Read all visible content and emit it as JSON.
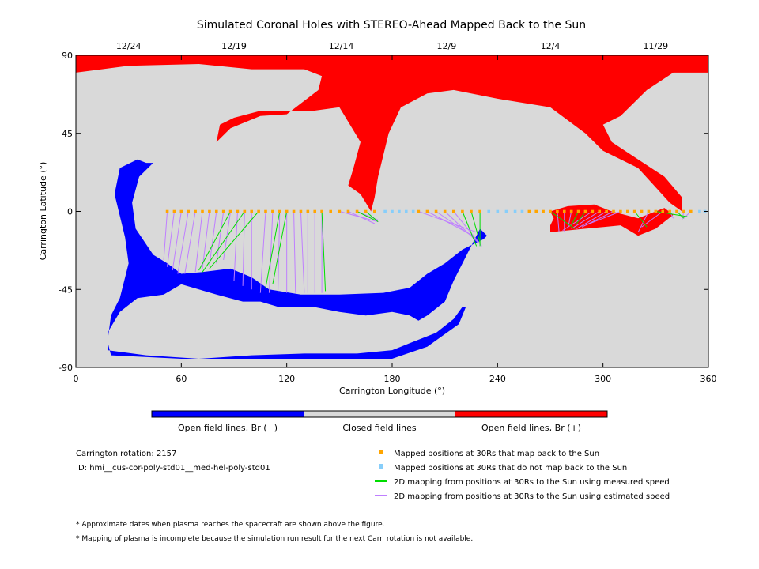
{
  "chart_data": {
    "type": "heatmap",
    "title": "Simulated Coronal Holes with STEREO-Ahead Mapped Back to the Sun",
    "xlabel": "Carrington Longitude (°)",
    "ylabel": "Carrington Latitude (°)",
    "xlim": [
      0,
      360
    ],
    "ylim": [
      -90,
      90
    ],
    "x_ticks": [
      0,
      60,
      120,
      180,
      240,
      300,
      360
    ],
    "y_ticks": [
      -90,
      -45,
      0,
      45,
      90
    ],
    "top_axis": {
      "labels": [
        "12/24",
        "12/19",
        "12/14",
        "12/9",
        "12/4",
        "11/29"
      ],
      "longitudes": [
        30,
        90,
        151,
        211,
        270,
        330
      ]
    },
    "colors": {
      "closed": "#d9d9d9",
      "open_negative": "#0000ff",
      "open_positive": "#ff0000",
      "mapped": "#ffa500",
      "not_mapped": "#87cefa",
      "measured": "#00dd00",
      "estimated": "#bf7fff"
    },
    "colorbar": [
      {
        "label": "Open field lines, Br (−)",
        "color": "#0000ff"
      },
      {
        "label": "Closed field lines",
        "color": "#d9d9d9"
      },
      {
        "label": "Open field lines, Br (+)",
        "color": "#ff0000"
      }
    ],
    "regions": {
      "positive": [
        [
          [
            0,
            90
          ],
          [
            360,
            90
          ],
          [
            360,
            80
          ],
          [
            340,
            80
          ],
          [
            325,
            70
          ],
          [
            310,
            55
          ],
          [
            300,
            50
          ],
          [
            305,
            40
          ],
          [
            320,
            30
          ],
          [
            335,
            20
          ],
          [
            345,
            8
          ],
          [
            345,
            0
          ],
          [
            338,
            5
          ],
          [
            320,
            25
          ],
          [
            300,
            35
          ],
          [
            290,
            45
          ],
          [
            270,
            60
          ],
          [
            240,
            65
          ],
          [
            215,
            70
          ],
          [
            200,
            68
          ],
          [
            185,
            60
          ],
          [
            178,
            45
          ],
          [
            172,
            20
          ],
          [
            170,
            8
          ],
          [
            168,
            0
          ],
          [
            162,
            10
          ],
          [
            155,
            15
          ],
          [
            158,
            25
          ],
          [
            162,
            40
          ],
          [
            150,
            60
          ],
          [
            135,
            58
          ],
          [
            105,
            58
          ],
          [
            90,
            54
          ],
          [
            82,
            50
          ],
          [
            80,
            40
          ],
          [
            88,
            48
          ],
          [
            105,
            55
          ],
          [
            120,
            56
          ],
          [
            138,
            70
          ],
          [
            140,
            78
          ],
          [
            130,
            82
          ],
          [
            100,
            82
          ],
          [
            70,
            85
          ],
          [
            30,
            84
          ],
          [
            0,
            80
          ]
        ],
        [
          [
            270,
            -12
          ],
          [
            290,
            -10
          ],
          [
            310,
            -8
          ],
          [
            320,
            -14
          ],
          [
            330,
            -10
          ],
          [
            340,
            -2
          ],
          [
            335,
            2
          ],
          [
            320,
            -4
          ],
          [
            305,
            0
          ],
          [
            295,
            4
          ],
          [
            280,
            3
          ],
          [
            270,
            0
          ],
          [
            272,
            -4
          ],
          [
            270,
            -8
          ]
        ]
      ],
      "negative": [
        [
          [
            40,
            28
          ],
          [
            44,
            28
          ],
          [
            36,
            20
          ],
          [
            32,
            5
          ],
          [
            34,
            -10
          ],
          [
            44,
            -25
          ],
          [
            52,
            -30
          ],
          [
            60,
            -36
          ],
          [
            72,
            -35
          ],
          [
            88,
            -33
          ],
          [
            100,
            -38
          ],
          [
            110,
            -45
          ],
          [
            128,
            -48
          ],
          [
            150,
            -48
          ],
          [
            175,
            -47
          ],
          [
            190,
            -44
          ],
          [
            200,
            -36
          ],
          [
            210,
            -30
          ],
          [
            220,
            -22
          ],
          [
            228,
            -18
          ],
          [
            232,
            -16
          ],
          [
            234,
            -14
          ],
          [
            230,
            -10
          ],
          [
            225,
            -20
          ],
          [
            220,
            -30
          ],
          [
            215,
            -40
          ],
          [
            210,
            -52
          ],
          [
            200,
            -60
          ],
          [
            195,
            -63
          ],
          [
            190,
            -60
          ],
          [
            180,
            -58
          ],
          [
            165,
            -60
          ],
          [
            150,
            -58
          ],
          [
            135,
            -55
          ],
          [
            125,
            -55
          ],
          [
            115,
            -55
          ],
          [
            105,
            -52
          ],
          [
            95,
            -52
          ],
          [
            80,
            -48
          ],
          [
            60,
            -42
          ],
          [
            50,
            -48
          ],
          [
            35,
            -50
          ],
          [
            25,
            -58
          ],
          [
            18,
            -70
          ],
          [
            18,
            -80
          ],
          [
            40,
            -83
          ],
          [
            70,
            -85
          ],
          [
            100,
            -83
          ],
          [
            130,
            -82
          ],
          [
            160,
            -82
          ],
          [
            180,
            -80
          ],
          [
            190,
            -76
          ],
          [
            205,
            -70
          ],
          [
            215,
            -62
          ],
          [
            220,
            -55
          ],
          [
            222,
            -55
          ],
          [
            218,
            -65
          ],
          [
            200,
            -78
          ],
          [
            180,
            -85
          ],
          [
            140,
            -85
          ],
          [
            60,
            -85
          ],
          [
            20,
            -83
          ],
          [
            18,
            -75
          ],
          [
            20,
            -60
          ],
          [
            25,
            -50
          ],
          [
            30,
            -30
          ],
          [
            28,
            -15
          ],
          [
            22,
            10
          ],
          [
            25,
            25
          ],
          [
            35,
            30
          ]
        ]
      ]
    },
    "mapped_lon": [
      52,
      56,
      60,
      64,
      68,
      72,
      76,
      80,
      84,
      88,
      92,
      96,
      100,
      104,
      108,
      112,
      116,
      120,
      124,
      128,
      132,
      136,
      140,
      145,
      150,
      155,
      160,
      165,
      170,
      195,
      200,
      205,
      210,
      215,
      220,
      225,
      230,
      258,
      262,
      266,
      270,
      274,
      278,
      282,
      286,
      290,
      294,
      298,
      302,
      306,
      310,
      314,
      318,
      322,
      326,
      330,
      334,
      338,
      342,
      346,
      350
    ],
    "not_mapped_lon": [
      176,
      180,
      184,
      188,
      192,
      235,
      240,
      245,
      250,
      254,
      355,
      358
    ],
    "estimated_lines": [
      [
        [
          52,
          0
        ],
        [
          50,
          -28
        ]
      ],
      [
        [
          56,
          0
        ],
        [
          52,
          -32
        ]
      ],
      [
        [
          60,
          0
        ],
        [
          55,
          -34
        ]
      ],
      [
        [
          64,
          0
        ],
        [
          58,
          -36
        ]
      ],
      [
        [
          68,
          0
        ],
        [
          62,
          -36
        ]
      ],
      [
        [
          72,
          0
        ],
        [
          68,
          -35
        ]
      ],
      [
        [
          76,
          0
        ],
        [
          72,
          -33
        ]
      ],
      [
        [
          80,
          0
        ],
        [
          76,
          -31
        ]
      ],
      [
        [
          84,
          0
        ],
        [
          80,
          -30
        ]
      ],
      [
        [
          88,
          0
        ],
        [
          84,
          -28
        ]
      ],
      [
        [
          92,
          0
        ],
        [
          90,
          -40
        ]
      ],
      [
        [
          96,
          0
        ],
        [
          95,
          -43
        ]
      ],
      [
        [
          100,
          0
        ],
        [
          100,
          -45
        ]
      ],
      [
        [
          108,
          0
        ],
        [
          105,
          -47
        ]
      ],
      [
        [
          112,
          0
        ],
        [
          110,
          -47
        ]
      ],
      [
        [
          116,
          0
        ],
        [
          115,
          -47
        ]
      ],
      [
        [
          120,
          0
        ],
        [
          120,
          -47
        ]
      ],
      [
        [
          124,
          0
        ],
        [
          125,
          -47
        ]
      ],
      [
        [
          128,
          0
        ],
        [
          130,
          -47
        ]
      ],
      [
        [
          132,
          0
        ],
        [
          132,
          -47
        ]
      ],
      [
        [
          136,
          0
        ],
        [
          136,
          -47
        ]
      ],
      [
        [
          140,
          0
        ],
        [
          140,
          -47
        ]
      ],
      [
        [
          150,
          0
        ],
        [
          172,
          -6
        ]
      ],
      [
        [
          155,
          0
        ],
        [
          170,
          -7
        ]
      ],
      [
        [
          160,
          0
        ],
        [
          172,
          -5
        ]
      ],
      [
        [
          195,
          0
        ],
        [
          228,
          -12
        ]
      ],
      [
        [
          200,
          0
        ],
        [
          226,
          -14
        ]
      ],
      [
        [
          205,
          0
        ],
        [
          228,
          -16
        ]
      ],
      [
        [
          210,
          0
        ],
        [
          229,
          -18
        ]
      ],
      [
        [
          215,
          0
        ],
        [
          231,
          -20
        ]
      ],
      [
        [
          274,
          0
        ],
        [
          275,
          -12
        ]
      ],
      [
        [
          278,
          0
        ],
        [
          278,
          -12
        ]
      ],
      [
        [
          282,
          0
        ],
        [
          280,
          -10
        ]
      ],
      [
        [
          294,
          0
        ],
        [
          277,
          -11
        ]
      ],
      [
        [
          298,
          0
        ],
        [
          282,
          -10
        ]
      ],
      [
        [
          302,
          0
        ],
        [
          285,
          -10
        ]
      ],
      [
        [
          306,
          0
        ],
        [
          288,
          -9
        ]
      ],
      [
        [
          310,
          0
        ],
        [
          290,
          -8
        ]
      ],
      [
        [
          326,
          0
        ],
        [
          320,
          -12
        ]
      ],
      [
        [
          334,
          0
        ],
        [
          322,
          -9
        ]
      ],
      [
        [
          338,
          0
        ],
        [
          340,
          -4
        ]
      ],
      [
        [
          346,
          0
        ],
        [
          345,
          -5
        ]
      ],
      [
        [
          350,
          0
        ],
        [
          346,
          -4
        ]
      ]
    ],
    "measured_lines": [
      [
        [
          88,
          0
        ],
        [
          70,
          -34
        ]
      ],
      [
        [
          96,
          0
        ],
        [
          72,
          -35
        ]
      ],
      [
        [
          104,
          0
        ],
        [
          76,
          -33
        ]
      ],
      [
        [
          116,
          0
        ],
        [
          108,
          -44
        ]
      ],
      [
        [
          120,
          0
        ],
        [
          112,
          -42
        ]
      ],
      [
        [
          140,
          0
        ],
        [
          142,
          -46
        ]
      ],
      [
        [
          160,
          0
        ],
        [
          170,
          -5
        ]
      ],
      [
        [
          165,
          0
        ],
        [
          172,
          -6
        ]
      ],
      [
        [
          220,
          0
        ],
        [
          228,
          -20
        ]
      ],
      [
        [
          225,
          0
        ],
        [
          230,
          -18
        ]
      ],
      [
        [
          230,
          0
        ],
        [
          230,
          -20
        ]
      ],
      [
        [
          270,
          0
        ],
        [
          284,
          -10
        ]
      ],
      [
        [
          286,
          0
        ],
        [
          282,
          -8
        ]
      ],
      [
        [
          290,
          0
        ],
        [
          285,
          -7
        ]
      ],
      [
        [
          318,
          0
        ],
        [
          325,
          -9
        ]
      ],
      [
        [
          330,
          0
        ],
        [
          348,
          -3
        ]
      ],
      [
        [
          342,
          0
        ],
        [
          346,
          -4
        ]
      ]
    ],
    "legend": [
      {
        "label": "Mapped positions at 30Rs that map back to the Sun",
        "kind": "marker",
        "color": "#ffa500"
      },
      {
        "label": "Mapped positions at 30Rs that do not map back to the Sun",
        "kind": "marker",
        "color": "#87cefa"
      },
      {
        "label": "2D mapping from positions at 30Rs to the Sun using measured speed",
        "kind": "line",
        "color": "#00dd00"
      },
      {
        "label": "2D mapping from positions at 30Rs to the Sun using estimated speed",
        "kind": "line",
        "color": "#bf7fff"
      }
    ]
  },
  "info": {
    "carrington_rotation": "Carrington rotation: 2157",
    "id": "ID: hmi__cus-cor-poly-std01__med-hel-poly-std01"
  },
  "footnotes": [
    "* Approximate dates when plasma reaches the spacecraft are shown above the figure.",
    "* Mapping of plasma is incomplete because the simulation run result for the next Carr. rotation is not available."
  ]
}
